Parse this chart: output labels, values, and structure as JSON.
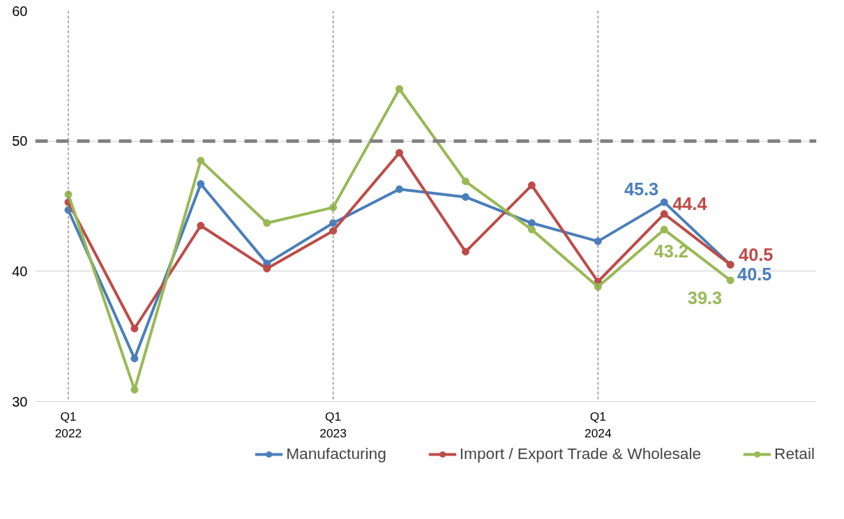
{
  "chart_data": {
    "type": "line",
    "categories": [
      "Q1\n2022",
      null,
      null,
      null,
      "Q1\n2023",
      null,
      null,
      null,
      "Q1\n2024",
      null,
      null
    ],
    "series": [
      {
        "name": "Manufacturing",
        "color": "#4a7ebb",
        "values": [
          44.7,
          33.3,
          46.7,
          40.6,
          43.7,
          46.3,
          45.7,
          43.7,
          42.3,
          45.3,
          40.5
        ],
        "value_labels": [
          null,
          null,
          null,
          null,
          null,
          null,
          null,
          null,
          null,
          "45.3",
          "40.5"
        ]
      },
      {
        "name": "Import / Export Trade & Wholesale",
        "color": "#be4b48",
        "values": [
          45.3,
          35.6,
          43.5,
          40.2,
          43.1,
          49.1,
          41.5,
          46.6,
          39.2,
          44.4,
          40.5
        ],
        "value_labels": [
          null,
          null,
          null,
          null,
          null,
          null,
          null,
          null,
          null,
          "44.4",
          "40.5"
        ]
      },
      {
        "name": "Retail",
        "color": "#98b954",
        "values": [
          45.9,
          30.9,
          48.5,
          43.7,
          44.9,
          54.0,
          46.9,
          43.2,
          38.8,
          43.2,
          39.3
        ],
        "value_labels": [
          null,
          null,
          null,
          null,
          null,
          null,
          null,
          null,
          null,
          "43.2",
          "39.3"
        ]
      }
    ],
    "ylim": [
      30,
      60
    ],
    "yticks": [
      30,
      40,
      50,
      60
    ],
    "ref_lines": [
      {
        "axis": "y",
        "value": 50,
        "color": "#808080",
        "line_style": "dashed"
      },
      {
        "axis": "x",
        "value": "Q1\n2022",
        "color": "#808080",
        "line_style": "dotted"
      },
      {
        "axis": "x",
        "value": "Q1\n2023",
        "color": "#808080",
        "line_style": "dotted"
      },
      {
        "axis": "x",
        "value": "Q1\n2024",
        "color": "#808080",
        "line_style": "dotted"
      }
    ],
    "grid": "y",
    "legend": "bottom",
    "marker": "circle",
    "line_style": "solid"
  }
}
